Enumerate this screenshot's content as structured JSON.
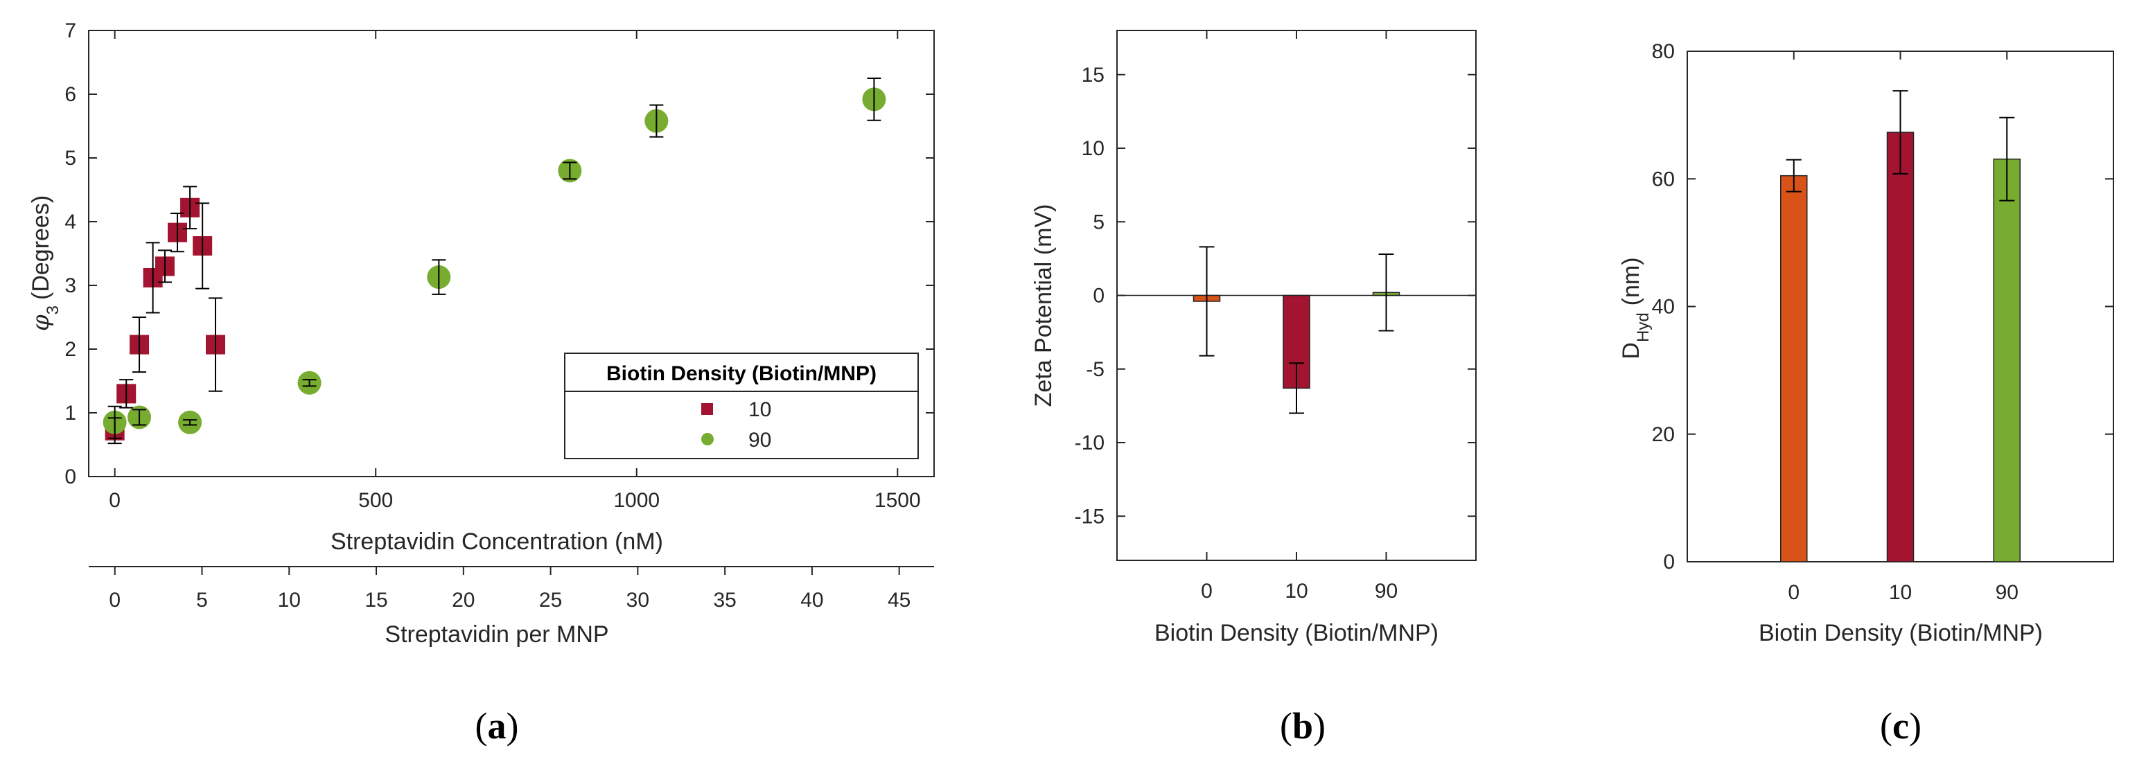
{
  "chart_data": [
    {
      "type": "scatter",
      "panel_label": {
        "open": "(",
        "letter": "a",
        "close": ")"
      },
      "xlabel": "Streptavidin Concentration (nM)",
      "xlabel2": "Streptavidin per MNP",
      "ylabel": {
        "main": "(Degrees)",
        "symbol": "φ",
        "subscript": "3"
      },
      "xlim": [
        -50,
        1570
      ],
      "ylim": [
        0,
        7
      ],
      "xticks": [
        0,
        500,
        1000,
        1500
      ],
      "x2lim": [
        -1.5,
        47
      ],
      "x2ticks": [
        0,
        5,
        10,
        15,
        20,
        25,
        30,
        35,
        40,
        45
      ],
      "yticks": [
        0,
        1,
        2,
        3,
        4,
        5,
        6,
        7
      ],
      "legend": {
        "title": "Biotin Density (Biotin/MNP)",
        "position": "bottom-right"
      },
      "series": [
        {
          "name": "10",
          "marker": "square",
          "color": "#A2142F",
          "points": [
            {
              "x": 0,
              "y": 0.72,
              "err": 0.2
            },
            {
              "x": 22,
              "y": 1.3,
              "err": 0.22
            },
            {
              "x": 47,
              "y": 2.07,
              "err": 0.43
            },
            {
              "x": 73,
              "y": 3.12,
              "err": 0.55
            },
            {
              "x": 96,
              "y": 3.3,
              "err": 0.25
            },
            {
              "x": 120,
              "y": 3.83,
              "err": 0.3
            },
            {
              "x": 144,
              "y": 4.22,
              "err": 0.33
            },
            {
              "x": 168,
              "y": 3.62,
              "err": 0.67
            },
            {
              "x": 193,
              "y": 2.07,
              "err": 0.73
            }
          ]
        },
        {
          "name": "90",
          "marker": "circle",
          "color": "#77AC30",
          "points": [
            {
              "x": 0,
              "y": 0.85,
              "err": 0.25
            },
            {
              "x": 47,
              "y": 0.93,
              "err": 0.12
            },
            {
              "x": 144,
              "y": 0.85,
              "err": 0.04
            },
            {
              "x": 373,
              "y": 1.47,
              "err": 0.05
            },
            {
              "x": 621,
              "y": 3.13,
              "err": 0.27
            },
            {
              "x": 872,
              "y": 4.8,
              "err": 0.13
            },
            {
              "x": 1038,
              "y": 5.58,
              "err": 0.25
            },
            {
              "x": 1455,
              "y": 5.92,
              "err": 0.33
            }
          ]
        }
      ]
    },
    {
      "type": "bar",
      "panel_label": {
        "open": "(",
        "letter": "b",
        "close": ")"
      },
      "xlabel": "Biotin Density (Biotin/MNP)",
      "ylabel": "Zeta Potential (mV)",
      "ylim": [
        -18,
        18
      ],
      "yticks": [
        -15,
        -10,
        -5,
        0,
        5,
        10,
        15
      ],
      "categories": [
        "0",
        "10",
        "90"
      ],
      "values": [
        -0.4,
        -6.3,
        0.2
      ],
      "errors": [
        3.7,
        1.7,
        2.6
      ],
      "colors": [
        "#D95319",
        "#A2142F",
        "#77AC30"
      ]
    },
    {
      "type": "bar",
      "panel_label": {
        "open": "(",
        "letter": "c",
        "close": ")"
      },
      "xlabel": "Biotin Density (Biotin/MNP)",
      "ylabel": {
        "main": "D",
        "subscript": "Hyd",
        "unit": "(nm)"
      },
      "ylim": [
        0,
        80
      ],
      "yticks": [
        0,
        20,
        40,
        60,
        80
      ],
      "categories": [
        "0",
        "10",
        "90"
      ],
      "values": [
        60.5,
        67.3,
        63.1
      ],
      "errors": [
        2.5,
        6.5,
        6.5
      ],
      "colors": [
        "#D95319",
        "#A2142F",
        "#77AC30"
      ]
    }
  ]
}
